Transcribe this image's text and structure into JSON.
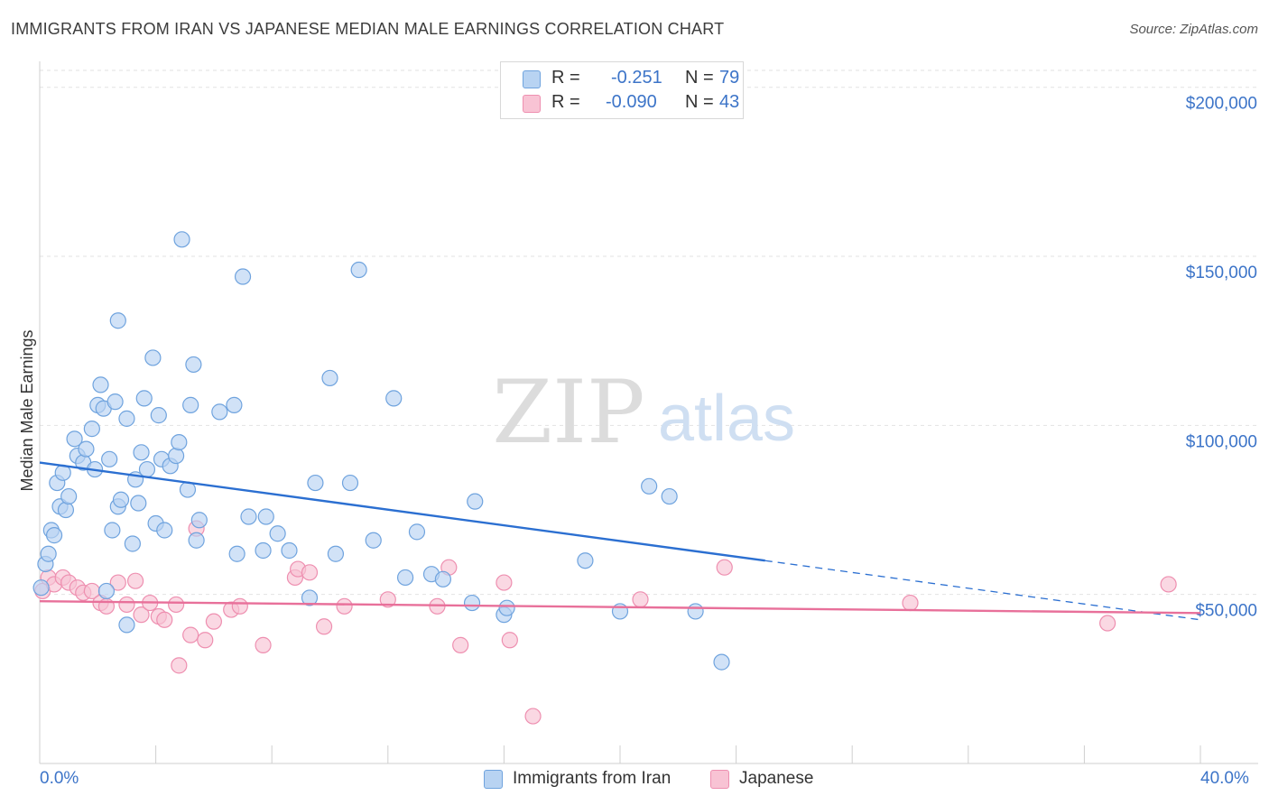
{
  "title": "IMMIGRANTS FROM IRAN VS JAPANESE MEDIAN MALE EARNINGS CORRELATION CHART",
  "source": "Source: ZipAtlas.com",
  "watermark": {
    "zip": "ZIP",
    "atlas": "atlas"
  },
  "legend": {
    "rows": [
      {
        "r_label": "R =",
        "r_value": "-0.251",
        "n_label": "N =",
        "n_value": "79"
      },
      {
        "r_label": "R =",
        "r_value": "-0.090",
        "n_label": "N =",
        "n_value": "43"
      }
    ]
  },
  "bottom_legend": {
    "series1": "Immigrants from Iran",
    "series2": "Japanese"
  },
  "x_axis": {
    "min_label": "0.0%",
    "max_label": "40.0%"
  },
  "colors": {
    "blue_fill": "#b8d3f2",
    "blue_stroke": "#6fa3de",
    "blue_line": "#2b6fd1",
    "pink_fill": "#f8c3d4",
    "pink_stroke": "#ee8fb0",
    "pink_line": "#e8709a",
    "axis_text": "#3c74c8",
    "grid": "#e2e2e2"
  },
  "chart_data": {
    "type": "scatter",
    "title": "IMMIGRANTS FROM IRAN VS JAPANESE MEDIAN MALE EARNINGS CORRELATION CHART",
    "xlabel": "",
    "ylabel": "Median Male Earnings",
    "xlim": [
      0,
      40
    ],
    "ylim": [
      0,
      205000
    ],
    "y_ticks": [
      {
        "value": 50000,
        "label": "$50,000"
      },
      {
        "value": 100000,
        "label": "$100,000"
      },
      {
        "value": 150000,
        "label": "$150,000"
      },
      {
        "value": 200000,
        "label": "$200,000"
      }
    ],
    "grid": true,
    "series": [
      {
        "name": "Immigrants from Iran",
        "r": -0.251,
        "n": 79,
        "trend": {
          "x0": 0,
          "y0": 89000,
          "x1": 25,
          "y1": 60000,
          "x_dash_end": 40,
          "y_dash_end": 42500
        },
        "points": [
          [
            0.05,
            52000
          ],
          [
            0.2,
            59000
          ],
          [
            0.3,
            62000
          ],
          [
            0.4,
            69000
          ],
          [
            0.5,
            67500
          ],
          [
            0.6,
            83000
          ],
          [
            0.7,
            76000
          ],
          [
            0.8,
            86000
          ],
          [
            0.9,
            75000
          ],
          [
            1.0,
            79000
          ],
          [
            1.2,
            96000
          ],
          [
            1.3,
            91000
          ],
          [
            1.5,
            89000
          ],
          [
            1.6,
            93000
          ],
          [
            1.8,
            99000
          ],
          [
            1.9,
            87000
          ],
          [
            2.0,
            106000
          ],
          [
            2.1,
            112000
          ],
          [
            2.2,
            105000
          ],
          [
            2.3,
            51000
          ],
          [
            2.4,
            90000
          ],
          [
            2.5,
            69000
          ],
          [
            2.6,
            107000
          ],
          [
            2.7,
            131000
          ],
          [
            2.7,
            76000
          ],
          [
            2.8,
            78000
          ],
          [
            3.0,
            41000
          ],
          [
            3.0,
            102000
          ],
          [
            3.2,
            65000
          ],
          [
            3.3,
            84000
          ],
          [
            3.4,
            77000
          ],
          [
            3.5,
            92000
          ],
          [
            3.6,
            108000
          ],
          [
            3.7,
            87000
          ],
          [
            3.9,
            120000
          ],
          [
            4.0,
            71000
          ],
          [
            4.1,
            103000
          ],
          [
            4.2,
            90000
          ],
          [
            4.3,
            69000
          ],
          [
            4.5,
            88000
          ],
          [
            4.7,
            91000
          ],
          [
            4.8,
            95000
          ],
          [
            4.9,
            155000
          ],
          [
            5.1,
            81000
          ],
          [
            5.2,
            106000
          ],
          [
            5.3,
            118000
          ],
          [
            5.4,
            66000
          ],
          [
            5.5,
            72000
          ],
          [
            6.2,
            104000
          ],
          [
            6.7,
            106000
          ],
          [
            6.8,
            62000
          ],
          [
            7.0,
            144000
          ],
          [
            7.2,
            73000
          ],
          [
            7.7,
            63000
          ],
          [
            7.8,
            73000
          ],
          [
            8.2,
            68000
          ],
          [
            8.6,
            63000
          ],
          [
            9.3,
            49000
          ],
          [
            9.5,
            83000
          ],
          [
            10.0,
            114000
          ],
          [
            10.2,
            62000
          ],
          [
            10.7,
            83000
          ],
          [
            11.0,
            146000
          ],
          [
            11.5,
            66000
          ],
          [
            12.2,
            108000
          ],
          [
            12.6,
            55000
          ],
          [
            13.0,
            68500
          ],
          [
            13.5,
            56000
          ],
          [
            13.9,
            54500
          ],
          [
            14.9,
            47500
          ],
          [
            15.0,
            77500
          ],
          [
            16.0,
            44000
          ],
          [
            16.1,
            46000
          ],
          [
            18.8,
            60000
          ],
          [
            20.0,
            45000
          ],
          [
            21.0,
            82000
          ],
          [
            21.7,
            79000
          ],
          [
            22.6,
            45000
          ],
          [
            23.5,
            30000
          ]
        ]
      },
      {
        "name": "Japanese",
        "r": -0.09,
        "n": 43,
        "trend": {
          "x0": 0,
          "y0": 48000,
          "x1": 40,
          "y1": 44500
        },
        "points": [
          [
            0.1,
            51000
          ],
          [
            0.3,
            55000
          ],
          [
            0.5,
            53000
          ],
          [
            0.8,
            55000
          ],
          [
            1.0,
            53500
          ],
          [
            1.3,
            52000
          ],
          [
            1.5,
            50500
          ],
          [
            1.8,
            51000
          ],
          [
            2.1,
            47500
          ],
          [
            2.3,
            46500
          ],
          [
            2.7,
            53500
          ],
          [
            3.0,
            47000
          ],
          [
            3.3,
            54000
          ],
          [
            3.5,
            44000
          ],
          [
            3.8,
            47500
          ],
          [
            4.1,
            43500
          ],
          [
            4.3,
            42500
          ],
          [
            4.7,
            47000
          ],
          [
            4.8,
            29000
          ],
          [
            5.2,
            38000
          ],
          [
            5.4,
            69500
          ],
          [
            5.7,
            36500
          ],
          [
            6.0,
            42000
          ],
          [
            6.6,
            45500
          ],
          [
            6.9,
            46500
          ],
          [
            7.7,
            35000
          ],
          [
            8.8,
            55000
          ],
          [
            8.9,
            57500
          ],
          [
            9.3,
            56500
          ],
          [
            9.8,
            40500
          ],
          [
            10.5,
            46500
          ],
          [
            12.0,
            48500
          ],
          [
            13.7,
            46500
          ],
          [
            14.1,
            58000
          ],
          [
            14.5,
            35000
          ],
          [
            16.0,
            53500
          ],
          [
            16.2,
            36500
          ],
          [
            17.0,
            14000
          ],
          [
            20.7,
            48500
          ],
          [
            23.6,
            58000
          ],
          [
            30.0,
            47500
          ],
          [
            36.8,
            41500
          ],
          [
            38.9,
            53000
          ]
        ]
      }
    ]
  }
}
